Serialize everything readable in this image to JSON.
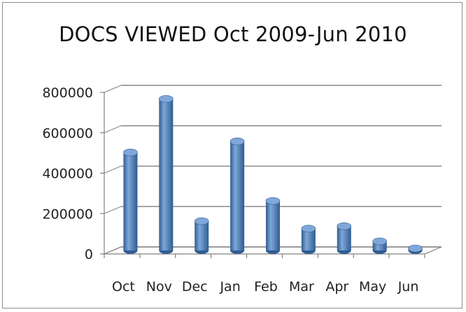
{
  "chart_data": {
    "type": "bar",
    "title": "DOCS VIEWED Oct 2009-Jun 2010",
    "categories": [
      "Oct",
      "Nov",
      "Dec",
      "Jan",
      "Feb",
      "Mar",
      "Apr",
      "May",
      "Jun"
    ],
    "values": [
      485000,
      750000,
      145000,
      540000,
      245000,
      108000,
      120000,
      45000,
      10000
    ],
    "ylim": [
      0,
      800000
    ],
    "yticks": [
      "0",
      "200000",
      "400000",
      "600000",
      "800000"
    ],
    "xlabel": "",
    "ylabel": "",
    "grid": true,
    "colors": {
      "bar": "#4a7ebb",
      "bar_top": "#7fa7d9",
      "bar_dark": "#2f5c92",
      "grid": "#8a8a8a",
      "axis": "#808080"
    }
  }
}
